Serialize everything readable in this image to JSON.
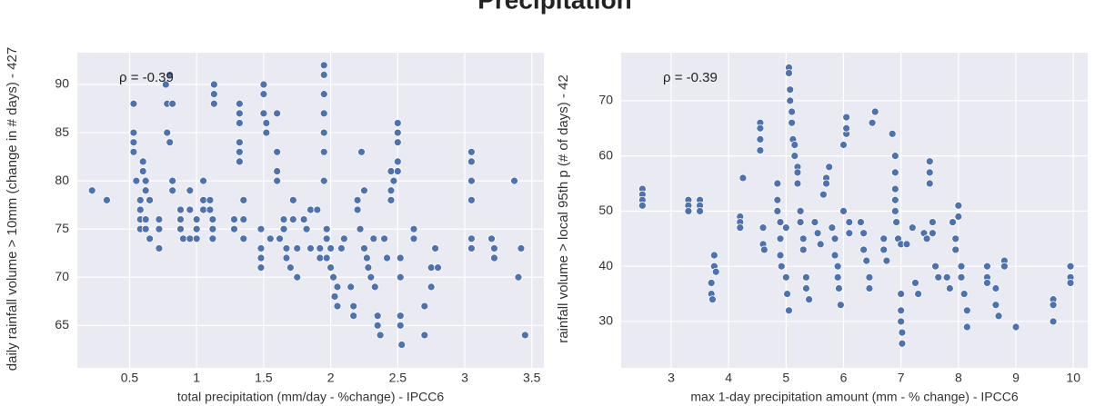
{
  "figure_title": "Precipitation",
  "chart_data": [
    {
      "type": "scatter",
      "xlabel": "total precipitation (mm/day - %change) - IPCC6",
      "ylabel": "daily rainfall volume > 10mm (change in # days) - 427",
      "annotation": "ρ = -0.39",
      "color": "#4c72b0",
      "grid": true,
      "xlim": [
        0.11,
        3.59
      ],
      "ylim": [
        60.6,
        93.3
      ],
      "xticks": [
        0.5,
        1.0,
        1.5,
        2.0,
        2.5,
        3.0,
        3.5
      ],
      "yticks": [
        65,
        70,
        75,
        80,
        85,
        90
      ],
      "x": [
        0.22,
        0.33,
        0.53,
        0.53,
        0.53,
        0.53,
        0.55,
        0.58,
        0.58,
        0.58,
        0.58,
        0.6,
        0.6,
        0.62,
        0.62,
        0.62,
        0.62,
        0.65,
        0.65,
        0.72,
        0.72,
        0.72,
        0.77,
        0.78,
        0.78,
        0.8,
        0.8,
        0.82,
        0.82,
        0.82,
        0.88,
        0.88,
        0.88,
        0.9,
        0.95,
        0.95,
        0.95,
        1.0,
        1.0,
        1.0,
        1.05,
        1.05,
        1.05,
        1.1,
        1.1,
        1.12,
        1.12,
        1.12,
        1.13,
        1.13,
        1.13,
        1.28,
        1.28,
        1.32,
        1.32,
        1.32,
        1.32,
        1.32,
        1.32,
        1.35,
        1.35,
        1.35,
        1.5,
        1.5,
        1.5,
        1.52,
        1.52,
        1.48,
        1.48,
        1.48,
        1.48,
        1.55,
        1.6,
        1.6,
        1.6,
        1.6,
        1.62,
        1.65,
        1.65,
        1.67,
        1.67,
        1.7,
        1.72,
        1.72,
        1.75,
        1.75,
        1.8,
        1.82,
        1.85,
        1.85,
        1.9,
        1.92,
        1.92,
        1.95,
        1.95,
        1.95,
        1.95,
        1.95,
        1.95,
        1.95,
        1.97,
        1.97,
        1.97,
        2.0,
        2.0,
        2.02,
        2.03,
        2.05,
        2.05,
        2.08,
        2.1,
        2.15,
        2.17,
        2.17,
        2.2,
        2.2,
        2.22,
        2.23,
        2.25,
        2.25,
        2.27,
        2.28,
        2.3,
        2.32,
        2.33,
        2.35,
        2.35,
        2.37,
        2.4,
        2.42,
        2.45,
        2.45,
        2.45,
        2.47,
        2.5,
        2.5,
        2.5,
        2.5,
        2.5,
        2.52,
        2.52,
        2.52,
        2.52,
        2.53,
        2.62,
        2.62,
        2.7,
        2.7,
        2.75,
        2.75,
        2.78,
        2.8,
        3.05,
        3.05,
        3.05,
        3.05,
        3.05,
        3.05,
        3.2,
        3.22,
        3.22,
        3.37,
        3.4,
        3.42,
        3.45
      ],
      "values": [
        79,
        78,
        88,
        85,
        84,
        83,
        80,
        78,
        77,
        76,
        75,
        82,
        81,
        80,
        79,
        76,
        75,
        74,
        78,
        76,
        75,
        73,
        90,
        88,
        85,
        91,
        84,
        80,
        79,
        88,
        75,
        76,
        77,
        74,
        79,
        77,
        74,
        76,
        75,
        74,
        80,
        78,
        77,
        78,
        77,
        76,
        75,
        74,
        90,
        89,
        88,
        76,
        75,
        88,
        87,
        86,
        84,
        83,
        82,
        78,
        76,
        74,
        90,
        89,
        87,
        86,
        85,
        75,
        73,
        72,
        71,
        74,
        87,
        83,
        81,
        80,
        74,
        76,
        75,
        73,
        72,
        71,
        78,
        76,
        73,
        70,
        76,
        75,
        77,
        73,
        77,
        73,
        72,
        92,
        91,
        89,
        87,
        85,
        83,
        80,
        75,
        74,
        72,
        73,
        71,
        70,
        68,
        67,
        69,
        73,
        74,
        69,
        67,
        66,
        78,
        77,
        75,
        83,
        79,
        73,
        72,
        71,
        70,
        74,
        69,
        66,
        65,
        64,
        74,
        72,
        81,
        79,
        78,
        80,
        86,
        85,
        84,
        82,
        81,
        72,
        70,
        66,
        65,
        63,
        75,
        74,
        67,
        64,
        71,
        69,
        73,
        71,
        83,
        82,
        80,
        78,
        74,
        73,
        74,
        73,
        72,
        80,
        70,
        73,
        64
      ]
    },
    {
      "type": "scatter",
      "xlabel": "max 1-day precipitation amount (mm - % change) - IPCC6",
      "ylabel": "rainfall volume > local 95th p (# of days) - 42",
      "annotation": "ρ = -0.39",
      "color": "#4c72b0",
      "grid": true,
      "xlim": [
        2.13,
        10.25
      ],
      "ylim": [
        21.6,
        78.7
      ],
      "xticks": [
        3,
        4,
        5,
        6,
        7,
        8,
        9,
        10
      ],
      "yticks": [
        30,
        40,
        50,
        60,
        70
      ],
      "x": [
        2.5,
        2.5,
        2.5,
        2.5,
        3.3,
        3.3,
        3.3,
        3.5,
        3.5,
        3.5,
        3.7,
        3.7,
        3.72,
        3.75,
        3.75,
        3.78,
        4.2,
        4.2,
        4.2,
        4.25,
        4.55,
        4.55,
        4.55,
        4.55,
        4.6,
        4.6,
        4.62,
        4.85,
        4.85,
        4.85,
        4.9,
        4.9,
        4.9,
        4.92,
        5.0,
        5.0,
        5.02,
        5.05,
        5.05,
        5.05,
        5.07,
        5.07,
        5.1,
        5.1,
        5.12,
        5.15,
        5.15,
        5.2,
        5.2,
        5.2,
        5.25,
        5.25,
        5.3,
        5.3,
        5.35,
        5.35,
        5.4,
        5.5,
        5.55,
        5.6,
        5.65,
        5.7,
        5.7,
        5.75,
        5.8,
        5.85,
        5.85,
        5.9,
        5.9,
        5.92,
        5.95,
        6.0,
        6.0,
        6.05,
        6.05,
        6.05,
        6.1,
        6.1,
        6.3,
        6.35,
        6.35,
        6.4,
        6.45,
        6.45,
        6.5,
        6.55,
        6.7,
        6.7,
        6.75,
        6.85,
        6.9,
        6.9,
        6.9,
        6.9,
        6.9,
        6.92,
        6.95,
        7.0,
        7.0,
        7.0,
        7.0,
        7.02,
        7.02,
        7.1,
        7.2,
        7.25,
        7.3,
        7.4,
        7.45,
        7.5,
        7.5,
        7.5,
        7.55,
        7.55,
        7.6,
        7.65,
        7.8,
        7.85,
        7.9,
        7.95,
        7.95,
        8.0,
        8.0,
        8.05,
        8.05,
        8.1,
        8.15,
        8.15,
        8.5,
        8.5,
        8.5,
        8.65,
        8.65,
        8.7,
        8.8,
        8.8,
        9.0,
        9.65,
        9.65,
        9.65,
        9.95,
        9.95,
        9.95
      ],
      "values": [
        54,
        53,
        52,
        51,
        52,
        51,
        50,
        52,
        51,
        50,
        37,
        35,
        34,
        42,
        40,
        39,
        49,
        48,
        47,
        56,
        66,
        65,
        63,
        61,
        47,
        44,
        43,
        55,
        52,
        50,
        48,
        45,
        42,
        40,
        47,
        38,
        35,
        32,
        76,
        75,
        72,
        70,
        68,
        66,
        63,
        62,
        60,
        58,
        57,
        55,
        50,
        48,
        45,
        43,
        38,
        36,
        34,
        48,
        46,
        44,
        53,
        56,
        55,
        58,
        47,
        45,
        42,
        40,
        38,
        36,
        33,
        50,
        62,
        64,
        65,
        67,
        48,
        46,
        48,
        46,
        43,
        41,
        38,
        36,
        66,
        68,
        45,
        43,
        41,
        64,
        60,
        57,
        54,
        52,
        50,
        48,
        45,
        44,
        35,
        32,
        30,
        28,
        26,
        44,
        47,
        37,
        35,
        46,
        45,
        59,
        57,
        55,
        48,
        46,
        40,
        38,
        38,
        36,
        48,
        45,
        43,
        51,
        49,
        40,
        38,
        35,
        32,
        29,
        40,
        38,
        37,
        36,
        33,
        31,
        41,
        40,
        29,
        34,
        33,
        30,
        40,
        38,
        37
      ]
    }
  ]
}
